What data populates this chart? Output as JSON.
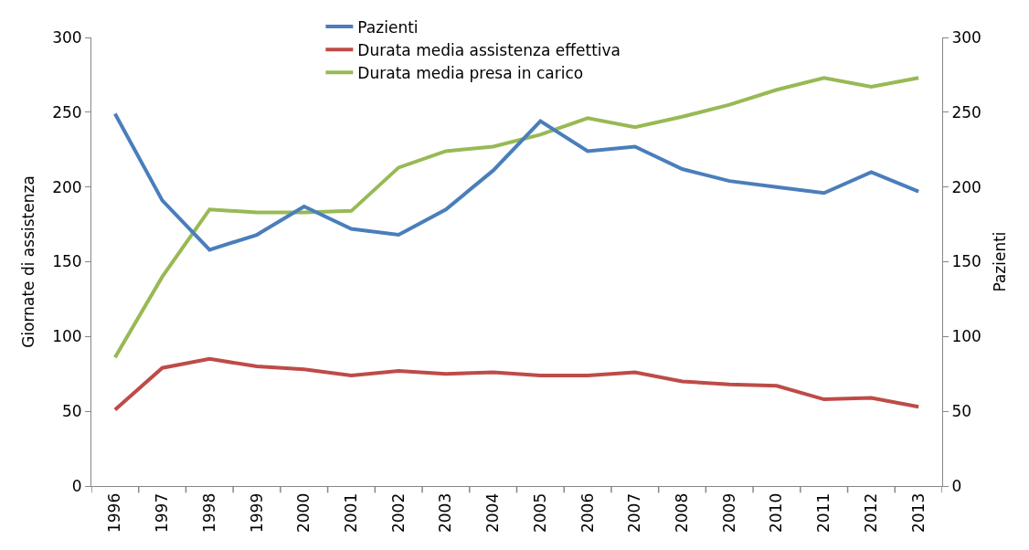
{
  "chart_data": {
    "type": "line",
    "ylabel": "Giornate di assistenza",
    "y2label": "Pazienti",
    "categories": [
      "1996",
      "1997",
      "1998",
      "1999",
      "2000",
      "2001",
      "2002",
      "2003",
      "2004",
      "2005",
      "2006",
      "2007",
      "2008",
      "2009",
      "2010",
      "2011",
      "2012",
      "2013"
    ],
    "series": [
      {
        "name": "Pazienti",
        "color": "#4a7ebb",
        "axis": "y2",
        "values": [
          249,
          191,
          158,
          168,
          187,
          172,
          168,
          185,
          211,
          244,
          224,
          227,
          212,
          204,
          200,
          196,
          210,
          197
        ]
      },
      {
        "name": "Durata media assistenza effettiva",
        "color": "#be4b48",
        "values": [
          51,
          79,
          85,
          80,
          78,
          74,
          77,
          75,
          76,
          74,
          74,
          76,
          70,
          68,
          67,
          58,
          59,
          53
        ]
      },
      {
        "name": "Durata media presa in carico",
        "color": "#98b954",
        "values": [
          86,
          140,
          185,
          183,
          183,
          184,
          213,
          224,
          227,
          235,
          246,
          240,
          247,
          255,
          265,
          273,
          267,
          273
        ]
      }
    ],
    "ylim": [
      0,
      300
    ],
    "yticks": [
      0,
      50,
      100,
      150,
      200,
      250,
      300
    ],
    "y2lim": [
      0,
      300
    ],
    "y2ticks": [
      0,
      50,
      100,
      150,
      200,
      250,
      300
    ],
    "legend": "top",
    "marker": "none",
    "line_style": "solid"
  }
}
